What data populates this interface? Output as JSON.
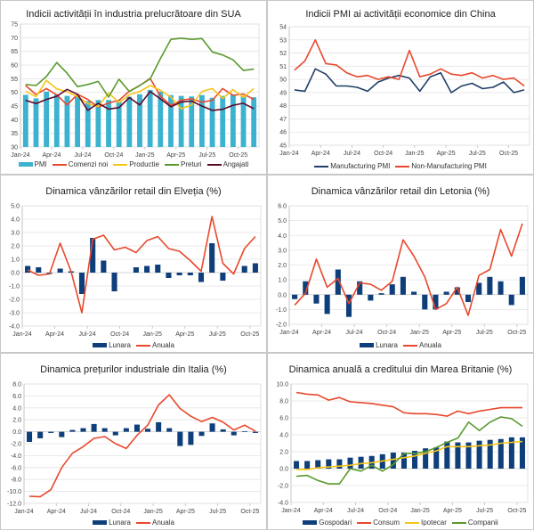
{
  "chart_data": [
    {
      "id": "us-ism",
      "type": "bar+line",
      "title": "Indicii activității în industria prelucrătoare din SUA",
      "x": [
        "Jan-24",
        "Feb-24",
        "Mar-24",
        "Apr-24",
        "May-24",
        "Jun-24",
        "Jul-24",
        "Aug-24",
        "Sep-24",
        "Oct-24",
        "Nov-24",
        "Dec-24",
        "Jan-25",
        "Feb-25",
        "Mar-25",
        "Apr-25",
        "May-25",
        "Jun-25",
        "Jul-25",
        "Aug-25",
        "Sep-25",
        "Oct-25",
        "Nov-25"
      ],
      "xticks": [
        "Jan-24",
        "Apr-24",
        "Jul-24",
        "Oct-24",
        "Jan-25",
        "Apr-25",
        "Jul-25",
        "Oct-25"
      ],
      "yticks": [
        30,
        35,
        40,
        45,
        50,
        55,
        60,
        65,
        70,
        75
      ],
      "ylim": [
        30,
        75
      ],
      "grid": true,
      "legend_position": "bottom",
      "series": [
        {
          "name": "PMI",
          "kind": "bar",
          "color": "#3bb2d0",
          "values": [
            49.1,
            47.8,
            50.3,
            49.2,
            48.7,
            48.5,
            46.8,
            47.2,
            47.2,
            46.5,
            48.4,
            49.3,
            50.9,
            50.3,
            49.0,
            48.7,
            48.5,
            49.0,
            48.0,
            48.7,
            49.1,
            48.7,
            48.2
          ]
        },
        {
          "name": "Comenzi noi",
          "kind": "line",
          "color": "#e8482c",
          "values": [
            52.5,
            49.2,
            51.4,
            49.1,
            45.4,
            49.3,
            47.4,
            44.6,
            46.1,
            47.1,
            50.4,
            52.5,
            55.1,
            48.6,
            45.2,
            47.2,
            47.6,
            46.4,
            47.1,
            51.4,
            48.9,
            49.4,
            47.4
          ]
        },
        {
          "name": "Productie",
          "kind": "line",
          "color": "#f5c518",
          "values": [
            50.4,
            48.4,
            54.4,
            51.3,
            50.2,
            48.5,
            45.9,
            44.8,
            49.8,
            46.2,
            49.1,
            50.3,
            52.5,
            50.7,
            48.3,
            44.0,
            45.4,
            50.3,
            51.4,
            47.8,
            51.0,
            48.2,
            51.4
          ]
        },
        {
          "name": "Preturi",
          "kind": "line",
          "color": "#5a9a2e",
          "values": [
            52.9,
            52.5,
            55.8,
            60.9,
            57.0,
            52.1,
            52.9,
            54.0,
            48.3,
            54.8,
            50.3,
            52.5,
            54.9,
            62.4,
            69.4,
            69.8,
            69.4,
            69.7,
            64.8,
            63.7,
            61.9,
            58.0,
            58.5
          ]
        },
        {
          "name": "Angajati",
          "kind": "line",
          "color": "#5c0a2a",
          "values": [
            47.1,
            45.9,
            47.4,
            48.6,
            51.1,
            49.3,
            43.4,
            46.0,
            43.9,
            44.4,
            48.1,
            45.4,
            50.3,
            47.6,
            44.7,
            46.5,
            46.8,
            45.0,
            43.4,
            43.8,
            45.3,
            46.0,
            44.0
          ]
        }
      ]
    },
    {
      "id": "china-pmi",
      "type": "line",
      "title": "Indicii PMI ai activității economice din China",
      "x": [
        "Jan-24",
        "Feb-24",
        "Mar-24",
        "Apr-24",
        "May-24",
        "Jun-24",
        "Jul-24",
        "Aug-24",
        "Sep-24",
        "Oct-24",
        "Nov-24",
        "Dec-24",
        "Jan-25",
        "Feb-25",
        "Mar-25",
        "Apr-25",
        "May-25",
        "Jun-25",
        "Jul-25",
        "Aug-25",
        "Sep-25",
        "Oct-25",
        "Nov-25"
      ],
      "xticks": [
        "Jan-24",
        "Apr-24",
        "Jul-24",
        "Oct-24",
        "Jan-25",
        "Apr-25",
        "Jul-25",
        "Oct-25"
      ],
      "yticks": [
        45,
        46,
        47,
        48,
        49,
        50,
        51,
        52,
        53,
        54
      ],
      "ylim": [
        45,
        54
      ],
      "grid": true,
      "legend_position": "bottom",
      "series": [
        {
          "name": "Manufacturing PMI",
          "kind": "line",
          "color": "#1f3f66",
          "values": [
            49.2,
            49.1,
            50.8,
            50.4,
            49.5,
            49.5,
            49.4,
            49.1,
            49.8,
            50.1,
            50.3,
            50.1,
            49.1,
            50.2,
            50.5,
            49.0,
            49.5,
            49.7,
            49.3,
            49.4,
            49.8,
            49.0,
            49.2
          ]
        },
        {
          "name": "Non-Manufacturing PMI",
          "kind": "line",
          "color": "#e8482c",
          "values": [
            50.7,
            51.4,
            53.0,
            51.2,
            51.1,
            50.5,
            50.2,
            50.3,
            50.0,
            50.2,
            50.0,
            52.2,
            50.2,
            50.4,
            50.8,
            50.4,
            50.3,
            50.5,
            50.1,
            50.3,
            50.0,
            50.1,
            49.5
          ]
        }
      ]
    },
    {
      "id": "swiss-retail",
      "type": "bar+line",
      "title": "Dinamica vânzărilor retail din Elveția (%)",
      "x": [
        "Jan-24",
        "Feb-24",
        "Mar-24",
        "Apr-24",
        "May-24",
        "Jun-24",
        "Jul-24",
        "Aug-24",
        "Sep-24",
        "Oct-24",
        "Nov-24",
        "Dec-24",
        "Jan-25",
        "Feb-25",
        "Mar-25",
        "Apr-25",
        "May-25",
        "Jun-25",
        "Jul-25",
        "Aug-25",
        "Sep-25",
        "Oct-25"
      ],
      "xticks": [
        "Jan-24",
        "Apr-24",
        "Jul-24",
        "Oct-24",
        "Jan-25",
        "Apr-25",
        "Jul-25",
        "Oct-25"
      ],
      "yticks": [
        -4.0,
        -3.0,
        -2.0,
        -1.0,
        0.0,
        1.0,
        2.0,
        3.0,
        4.0,
        5.0
      ],
      "ylim": [
        -4,
        5
      ],
      "grid": true,
      "legend_position": "bottom",
      "series": [
        {
          "name": "Lunara",
          "kind": "bar",
          "color": "#0f3f7a",
          "values": [
            0.5,
            0.4,
            -0.1,
            0.3,
            0.1,
            -1.6,
            2.6,
            0.9,
            -1.4,
            null,
            0.4,
            0.5,
            0.6,
            -0.4,
            -0.2,
            -0.2,
            -0.7,
            2.2,
            -0.6,
            null,
            0.5,
            0.7
          ]
        },
        {
          "name": "Anuala",
          "kind": "line",
          "color": "#e8482c",
          "values": [
            0.2,
            -0.2,
            -0.1,
            2.2,
            0.1,
            -3.0,
            2.5,
            2.8,
            1.7,
            1.9,
            1.5,
            2.4,
            2.7,
            1.8,
            1.6,
            0.9,
            0.1,
            4.2,
            0.7,
            -0.1,
            1.8,
            2.7
          ]
        }
      ]
    },
    {
      "id": "latvia-retail",
      "type": "bar+line",
      "title": "Dinamica vânzărilor retail din Letonia (%)",
      "x": [
        "Jan-24",
        "Feb-24",
        "Mar-24",
        "Apr-24",
        "May-24",
        "Jun-24",
        "Jul-24",
        "Aug-24",
        "Sep-24",
        "Oct-24",
        "Nov-24",
        "Dec-24",
        "Jan-25",
        "Feb-25",
        "Mar-25",
        "Apr-25",
        "May-25",
        "Jun-25",
        "Jul-25",
        "Aug-25",
        "Sep-25",
        "Oct-25"
      ],
      "xticks": [
        "Jan-24",
        "Apr-24",
        "Jul-24",
        "Oct-24",
        "Jan-25",
        "Apr-25",
        "Jul-25",
        "Oct-25"
      ],
      "yticks": [
        -2.0,
        -1.0,
        0.0,
        1.0,
        2.0,
        3.0,
        4.0,
        5.0,
        6.0
      ],
      "ylim": [
        -2,
        6
      ],
      "grid": true,
      "legend_position": "bottom",
      "series": [
        {
          "name": "Lunara",
          "kind": "bar",
          "color": "#0f3f7a",
          "values": [
            -0.3,
            0.9,
            -0.6,
            -1.3,
            1.7,
            -1.5,
            0.9,
            -0.4,
            0.1,
            0.7,
            1.2,
            0.2,
            -1.0,
            -1.0,
            0.2,
            0.5,
            -0.5,
            0.8,
            1.2,
            0.9,
            -0.7,
            1.2
          ]
        },
        {
          "name": "Anuala",
          "kind": "line",
          "color": "#e8482c",
          "values": [
            -0.7,
            0.1,
            2.4,
            0.5,
            1.1,
            -0.6,
            0.8,
            0.7,
            0.3,
            0.9,
            3.7,
            2.6,
            1.2,
            -1.0,
            -0.6,
            0.5,
            -1.4,
            1.3,
            1.7,
            4.4,
            2.6,
            4.8
          ]
        }
      ]
    },
    {
      "id": "italy-ppi",
      "type": "bar+line",
      "title": "Dinamica prețurilor industriale din Italia (%)",
      "x": [
        "Jan-24",
        "Feb-24",
        "Mar-24",
        "Apr-24",
        "May-24",
        "Jun-24",
        "Jul-24",
        "Aug-24",
        "Sep-24",
        "Oct-24",
        "Nov-24",
        "Dec-24",
        "Jan-25",
        "Feb-25",
        "Mar-25",
        "Apr-25",
        "May-25",
        "Jun-25",
        "Jul-25",
        "Aug-25",
        "Sep-25",
        "Oct-25"
      ],
      "xticks": [
        "Jan-24",
        "Apr-24",
        "Jul-24",
        "Oct-24",
        "Jan-25",
        "Apr-25",
        "Jul-25",
        "Oct-25"
      ],
      "yticks": [
        -12.0,
        -10.0,
        -8.0,
        -6.0,
        -4.0,
        -2.0,
        0.0,
        2.0,
        4.0,
        6.0,
        8.0
      ],
      "ylim": [
        -12,
        8
      ],
      "grid": true,
      "legend_position": "bottom",
      "series": [
        {
          "name": "Lunara",
          "kind": "bar",
          "color": "#0f3f7a",
          "values": [
            -1.7,
            -1.1,
            -0.2,
            -0.9,
            0.3,
            0.6,
            1.3,
            0.6,
            -0.6,
            0.6,
            1.2,
            0.5,
            1.6,
            0.6,
            -2.4,
            -2.2,
            -0.7,
            1.4,
            0.4,
            -0.6,
            0.1,
            -0.2
          ]
        },
        {
          "name": "Anuala",
          "kind": "line",
          "color": "#e8482c",
          "values": [
            -10.8,
            -10.9,
            -9.7,
            -6.0,
            -3.6,
            -2.5,
            -1.1,
            -0.8,
            -2.0,
            -2.8,
            -0.6,
            1.1,
            4.5,
            6.2,
            3.9,
            2.6,
            1.7,
            2.4,
            1.6,
            0.3,
            1.1,
            0.1
          ]
        }
      ]
    },
    {
      "id": "uk-credit",
      "type": "bar+line",
      "title": "Dinamica anuală a creditului din Marea Britanie (%)",
      "x": [
        "Jan-24",
        "Feb-24",
        "Mar-24",
        "Apr-24",
        "May-24",
        "Jun-24",
        "Jul-24",
        "Aug-24",
        "Sep-24",
        "Oct-24",
        "Nov-24",
        "Dec-24",
        "Jan-25",
        "Feb-25",
        "Mar-25",
        "Apr-25",
        "May-25",
        "Jun-25",
        "Jul-25",
        "Aug-25",
        "Sep-25",
        "Oct-25"
      ],
      "xticks": [
        "Jan-24",
        "Apr-24",
        "Jul-24",
        "Oct-24",
        "Jan-25",
        "Apr-25",
        "Jul-25",
        "Oct-25"
      ],
      "yticks": [
        -4.0,
        -2.0,
        0.0,
        2.0,
        4.0,
        6.0,
        8.0,
        10.0
      ],
      "ylim": [
        -4,
        10
      ],
      "grid": true,
      "legend_position": "bottom",
      "series": [
        {
          "name": "Gospodari",
          "kind": "bar",
          "color": "#0f3f7a",
          "values": [
            0.9,
            0.9,
            1.0,
            1.1,
            1.1,
            1.3,
            1.4,
            1.5,
            1.7,
            1.9,
            1.9,
            2.1,
            2.4,
            2.5,
            3.2,
            3.1,
            3.1,
            3.3,
            3.4,
            3.5,
            3.7,
            3.7
          ]
        },
        {
          "name": "Consum",
          "kind": "line",
          "color": "#e8482c",
          "values": [
            9.0,
            8.8,
            8.7,
            8.1,
            8.4,
            7.9,
            7.8,
            7.7,
            7.5,
            7.3,
            6.6,
            6.5,
            6.5,
            6.4,
            6.2,
            6.8,
            6.5,
            6.8,
            7.0,
            7.2,
            7.2,
            7.2
          ]
        },
        {
          "name": "Ipotecar",
          "kind": "line",
          "color": "#f5c518",
          "values": [
            -0.1,
            -0.1,
            0.1,
            0.2,
            0.3,
            0.4,
            0.6,
            0.7,
            0.9,
            1.1,
            1.3,
            1.5,
            1.8,
            2.1,
            2.6,
            2.6,
            2.6,
            2.7,
            2.8,
            3.0,
            3.1,
            3.2
          ]
        },
        {
          "name": "Companii",
          "kind": "line",
          "color": "#5a9a2e",
          "values": [
            -0.9,
            -0.8,
            -1.4,
            -1.8,
            -1.8,
            0.0,
            -0.3,
            0.4,
            -0.3,
            0.5,
            1.8,
            1.8,
            2.0,
            2.5,
            3.1,
            3.6,
            5.5,
            4.5,
            5.5,
            6.1,
            5.9,
            5.0
          ]
        }
      ]
    }
  ]
}
